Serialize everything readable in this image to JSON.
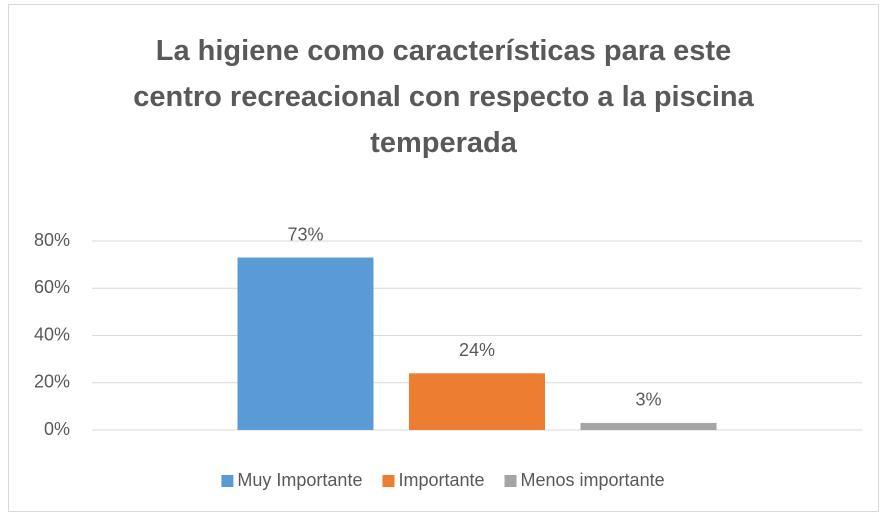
{
  "chart_data": {
    "type": "bar",
    "title": "La higiene como características para este centro recreacional con respecto a la piscina temperada",
    "categories": [
      null
    ],
    "series": [
      {
        "name": "Muy Importante",
        "color": "#5b9bd5",
        "values": [
          73
        ],
        "value_labels": [
          "73%"
        ]
      },
      {
        "name": "Importante",
        "color": "#ed7d31",
        "values": [
          24
        ],
        "value_labels": [
          "24%"
        ]
      },
      {
        "name": "Menos importante",
        "color": "#a5a5a5",
        "values": [
          3
        ],
        "value_labels": [
          "3%"
        ]
      }
    ],
    "ylim": [
      0,
      80
    ],
    "yticks": [
      {
        "value": 0,
        "label": "0%"
      },
      {
        "value": 20,
        "label": "20%"
      },
      {
        "value": 40,
        "label": "40%"
      },
      {
        "value": 60,
        "label": "60%"
      },
      {
        "value": 80,
        "label": "80%"
      }
    ],
    "grid": true,
    "legend": "bottom"
  }
}
